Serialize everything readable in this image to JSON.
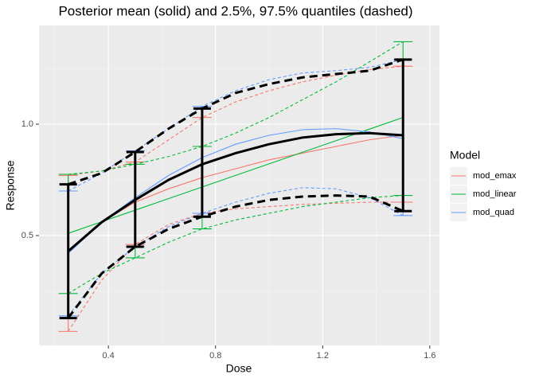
{
  "chart_data": {
    "type": "line",
    "title": "Posterior mean (solid) and 2.5%, 97.5% quantiles (dashed)",
    "x_label": "Dose",
    "y_label": "Response",
    "legend_title": "Model",
    "xlim": [
      0.141,
      1.636
    ],
    "ylim": [
      0.007,
      1.443
    ],
    "xticks": [
      0.4,
      0.8,
      1.2,
      1.6
    ],
    "yticks": [
      {
        "value": 0.5,
        "label": "0.5"
      },
      {
        "value": 1,
        "label": "1.0"
      }
    ],
    "grid": true,
    "legend_position": "right",
    "x": [
      0.25,
      0.375,
      0.5,
      0.625,
      0.75,
      0.875,
      1.0,
      1.125,
      1.25,
      1.375,
      1.5
    ],
    "errorbar_x": [
      0.25,
      0.5,
      0.75,
      1.5
    ],
    "series": [
      {
        "name": "mod_emax",
        "color": "#F8766D",
        "mean": [
          0.43,
          0.56,
          0.65,
          0.71,
          0.76,
          0.8,
          0.84,
          0.87,
          0.9,
          0.93,
          0.95
        ],
        "lower": [
          0.07,
          0.3,
          0.46,
          0.55,
          0.6,
          0.62,
          0.63,
          0.64,
          0.645,
          0.65,
          0.65
        ],
        "upper": [
          0.77,
          0.79,
          0.83,
          0.93,
          1.03,
          1.1,
          1.15,
          1.19,
          1.22,
          1.245,
          1.26
        ]
      },
      {
        "name": "mod_linear",
        "color": "#00BA38",
        "mean": [
          0.51,
          0.562,
          0.614,
          0.666,
          0.718,
          0.77,
          0.822,
          0.874,
          0.926,
          0.978,
          1.03
        ],
        "lower": [
          0.24,
          0.33,
          0.4,
          0.47,
          0.53,
          0.57,
          0.6,
          0.63,
          0.65,
          0.67,
          0.68
        ],
        "upper": [
          0.775,
          0.79,
          0.82,
          0.855,
          0.9,
          0.96,
          1.03,
          1.11,
          1.19,
          1.28,
          1.37
        ]
      },
      {
        "name": "mod_quad",
        "color": "#619CFF",
        "mean": [
          0.42,
          0.56,
          0.67,
          0.77,
          0.85,
          0.91,
          0.95,
          0.975,
          0.98,
          0.965,
          0.935
        ],
        "lower": [
          0.14,
          0.33,
          0.45,
          0.54,
          0.6,
          0.65,
          0.69,
          0.715,
          0.71,
          0.67,
          0.59
        ],
        "upper": [
          0.7,
          0.78,
          0.88,
          0.98,
          1.08,
          1.15,
          1.2,
          1.23,
          1.24,
          1.255,
          1.29
        ]
      },
      {
        "color": "#000000",
        "mean": [
          0.43,
          0.56,
          0.66,
          0.75,
          0.82,
          0.87,
          0.91,
          0.94,
          0.955,
          0.96,
          0.95
        ],
        "lower": [
          0.13,
          0.33,
          0.45,
          0.53,
          0.585,
          0.63,
          0.66,
          0.675,
          0.68,
          0.675,
          0.61
        ],
        "upper": [
          0.73,
          0.78,
          0.875,
          0.98,
          1.07,
          1.14,
          1.18,
          1.21,
          1.225,
          1.24,
          1.29
        ]
      }
    ]
  }
}
